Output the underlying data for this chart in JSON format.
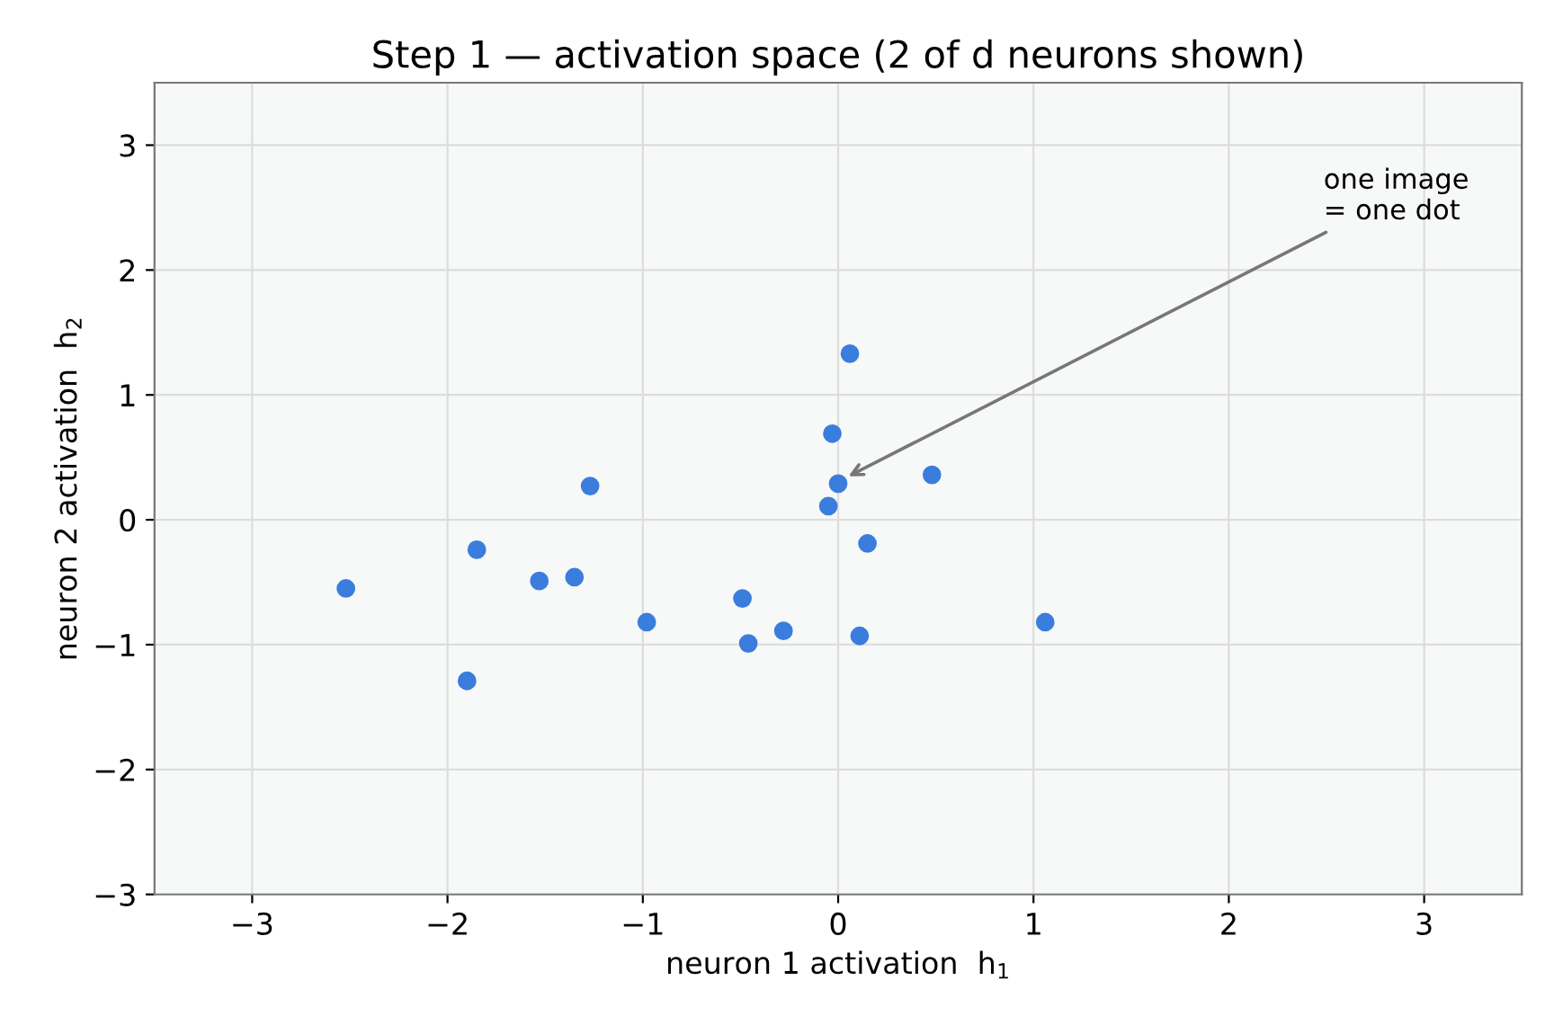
{
  "chart_data": {
    "type": "scatter",
    "title": "Step 1 — activation space (2 of d neurons shown)",
    "xlabel": "neuron 1 activation  h$_{1}$",
    "ylabel": "neuron 2 activation  h$_{2}$",
    "series": [
      {
        "color": "#3b7ddd",
        "x": [
          -2.52,
          -1.85,
          -1.9,
          -1.53,
          -1.35,
          -1.27,
          -0.98,
          -0.49,
          -0.46,
          -0.28,
          -0.05,
          -0.03,
          0.0,
          0.06,
          0.15,
          0.11,
          0.48,
          1.06
        ],
        "values": [
          -0.55,
          -0.24,
          -1.29,
          -0.49,
          -0.46,
          0.27,
          -0.82,
          -0.63,
          -0.99,
          -0.89,
          0.11,
          0.69,
          0.29,
          1.33,
          -0.19,
          -0.93,
          0.36,
          -0.82
        ]
      }
    ],
    "xlim": [
      -3.5,
      3.5
    ],
    "ylim": [
      -3,
      3.5
    ],
    "xticks": [
      -3,
      -2,
      -1,
      0,
      1,
      2,
      3
    ],
    "yticks": [
      -3,
      -2,
      -1,
      0,
      1,
      2,
      3
    ],
    "grid": true,
    "marker": "circle",
    "legend": false,
    "annotations": [
      {
        "text": "one image\n= one dot",
        "x": 0.03,
        "y": 0.33
      }
    ]
  }
}
